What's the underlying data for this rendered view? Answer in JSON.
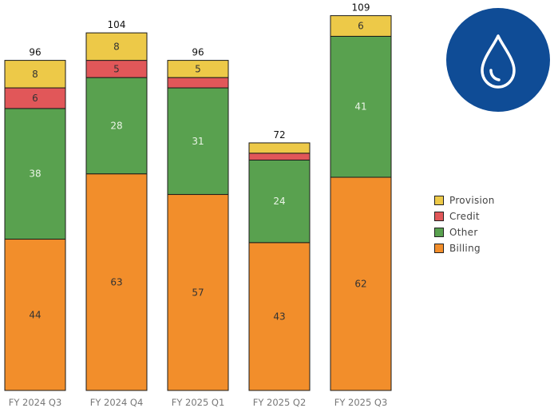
{
  "logo": {
    "icon": "water-drop-icon",
    "background": "#0f4c96"
  },
  "chart_data": {
    "type": "bar",
    "stacked": true,
    "categories": [
      "FY 2024 Q3",
      "FY 2024 Q4",
      "FY 2025 Q1",
      "FY 2025 Q2",
      "FY 2025 Q3"
    ],
    "series": [
      {
        "name": "Billing",
        "color": "#f28e2b",
        "values": [
          44,
          63,
          57,
          43,
          62
        ],
        "labels": [
          "44",
          "63",
          "57",
          "43",
          "62"
        ]
      },
      {
        "name": "Other",
        "color": "#59a14f",
        "values": [
          38,
          28,
          31,
          24,
          41
        ],
        "labels": [
          "38",
          "28",
          "31",
          "24",
          "41"
        ]
      },
      {
        "name": "Credit",
        "color": "#e15759",
        "values": [
          6,
          5,
          3,
          2,
          0
        ],
        "labels": [
          "6",
          "5",
          "",
          "",
          ""
        ]
      },
      {
        "name": "Provision",
        "color": "#edc948",
        "values": [
          8,
          8,
          5,
          3,
          6
        ],
        "labels": [
          "8",
          "8",
          "5",
          "",
          "6"
        ]
      }
    ],
    "totals": [
      "96",
      "104",
      "96",
      "72",
      "109"
    ],
    "ylim": [
      0,
      111
    ],
    "grid": false,
    "legend_position": "right"
  },
  "legend": {
    "items": [
      {
        "label": "Provision",
        "color": "#edc948"
      },
      {
        "label": "Credit",
        "color": "#e15759"
      },
      {
        "label": "Other",
        "color": "#59a14f"
      },
      {
        "label": "Billing",
        "color": "#f28e2b"
      }
    ]
  }
}
